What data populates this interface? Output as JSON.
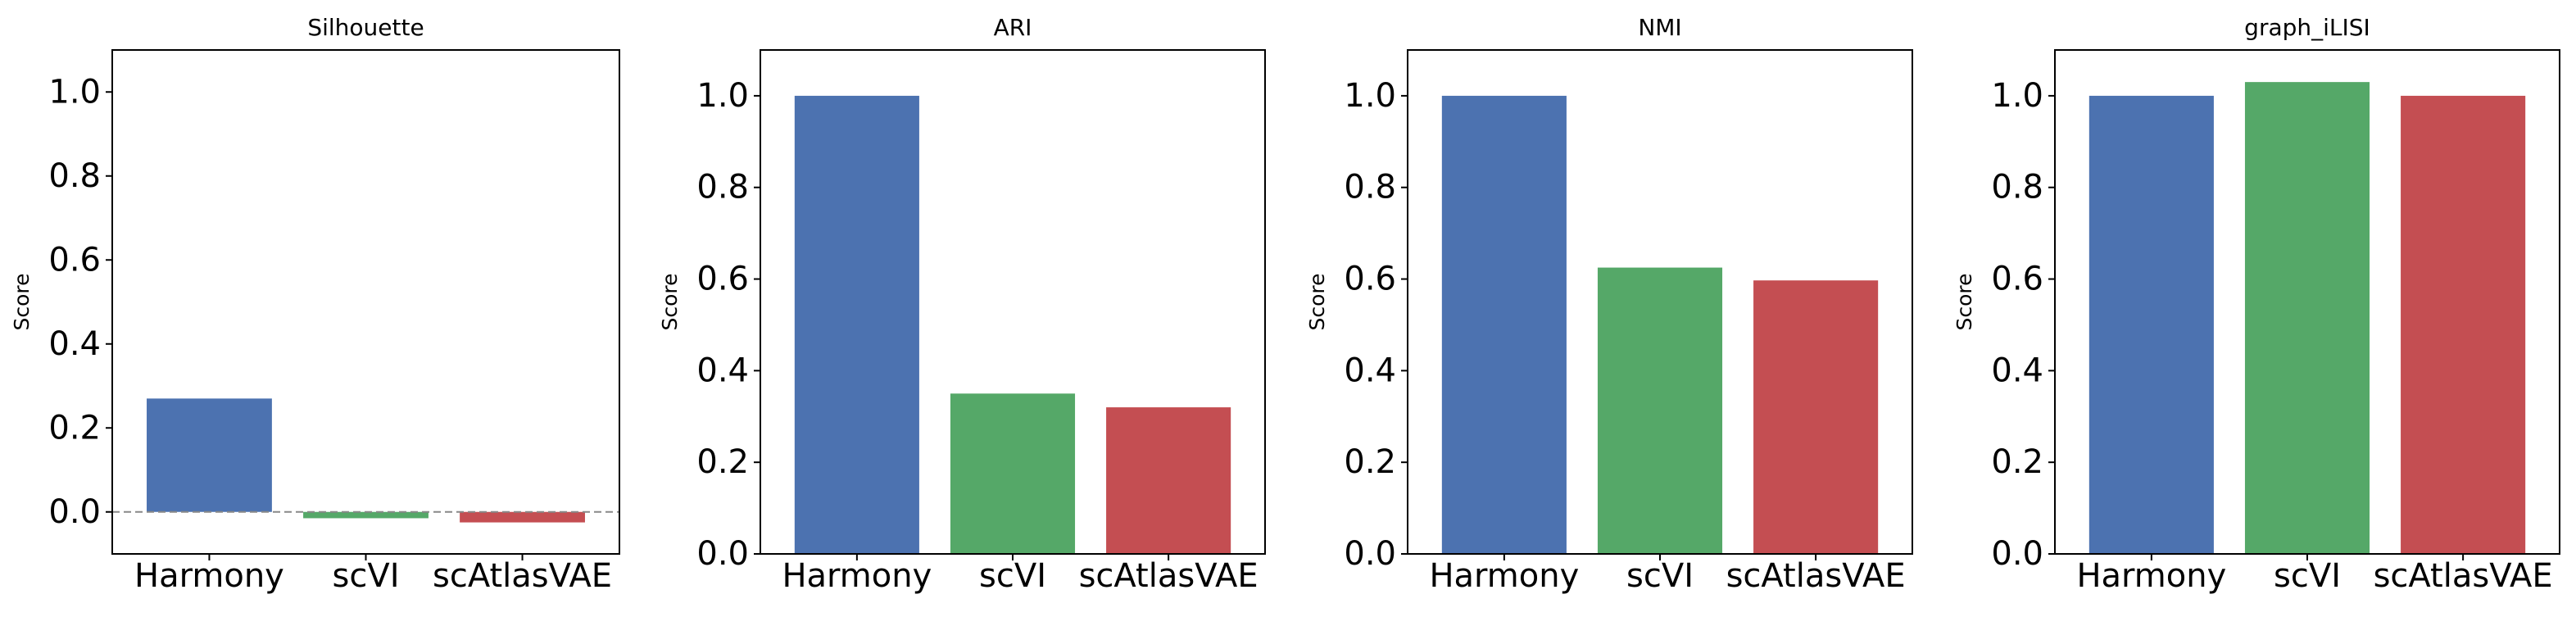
{
  "chart_data": [
    {
      "type": "bar",
      "title": "Silhouette",
      "xlabel": "",
      "ylabel": "Score",
      "categories": [
        "Harmony",
        "scVI",
        "scAtlasVAE"
      ],
      "values": [
        0.27,
        -0.015,
        -0.025
      ],
      "ylim": [
        -0.1,
        1.1
      ],
      "yticks": [
        0.0,
        0.2,
        0.4,
        0.6,
        0.8,
        1.0
      ],
      "ytick_labels": [
        "0.0",
        "0.2",
        "0.4",
        "0.6",
        "0.8",
        "1.0"
      ],
      "zero_line": true
    },
    {
      "type": "bar",
      "title": "ARI",
      "xlabel": "",
      "ylabel": "Score",
      "categories": [
        "Harmony",
        "scVI",
        "scAtlasVAE"
      ],
      "values": [
        1.0,
        0.35,
        0.32
      ],
      "ylim": [
        0,
        1.1
      ],
      "yticks": [
        0.0,
        0.2,
        0.4,
        0.6,
        0.8,
        1.0
      ],
      "ytick_labels": [
        "0.0",
        "0.2",
        "0.4",
        "0.6",
        "0.8",
        "1.0"
      ]
    },
    {
      "type": "bar",
      "title": "NMI",
      "xlabel": "",
      "ylabel": "Score",
      "categories": [
        "Harmony",
        "scVI",
        "scAtlasVAE"
      ],
      "values": [
        1.0,
        0.625,
        0.597
      ],
      "ylim": [
        0,
        1.1
      ],
      "yticks": [
        0.0,
        0.2,
        0.4,
        0.6,
        0.8,
        1.0
      ],
      "ytick_labels": [
        "0.0",
        "0.2",
        "0.4",
        "0.6",
        "0.8",
        "1.0"
      ]
    },
    {
      "type": "bar",
      "title": "graph_iLISI",
      "xlabel": "",
      "ylabel": "Score",
      "categories": [
        "Harmony",
        "scVI",
        "scAtlasVAE"
      ],
      "values": [
        1.0,
        1.03,
        1.0
      ],
      "ylim": [
        0,
        1.1
      ],
      "yticks": [
        0.0,
        0.2,
        0.4,
        0.6,
        0.8,
        1.0
      ],
      "ytick_labels": [
        "0.0",
        "0.2",
        "0.4",
        "0.6",
        "0.8",
        "1.0"
      ]
    }
  ],
  "colors": {
    "Harmony": "#4C72B0",
    "scVI": "#55A868",
    "scAtlasVAE": "#C44E52",
    "zero_line": "#888888",
    "axes": "#000000"
  },
  "grid": false,
  "legend": "none"
}
